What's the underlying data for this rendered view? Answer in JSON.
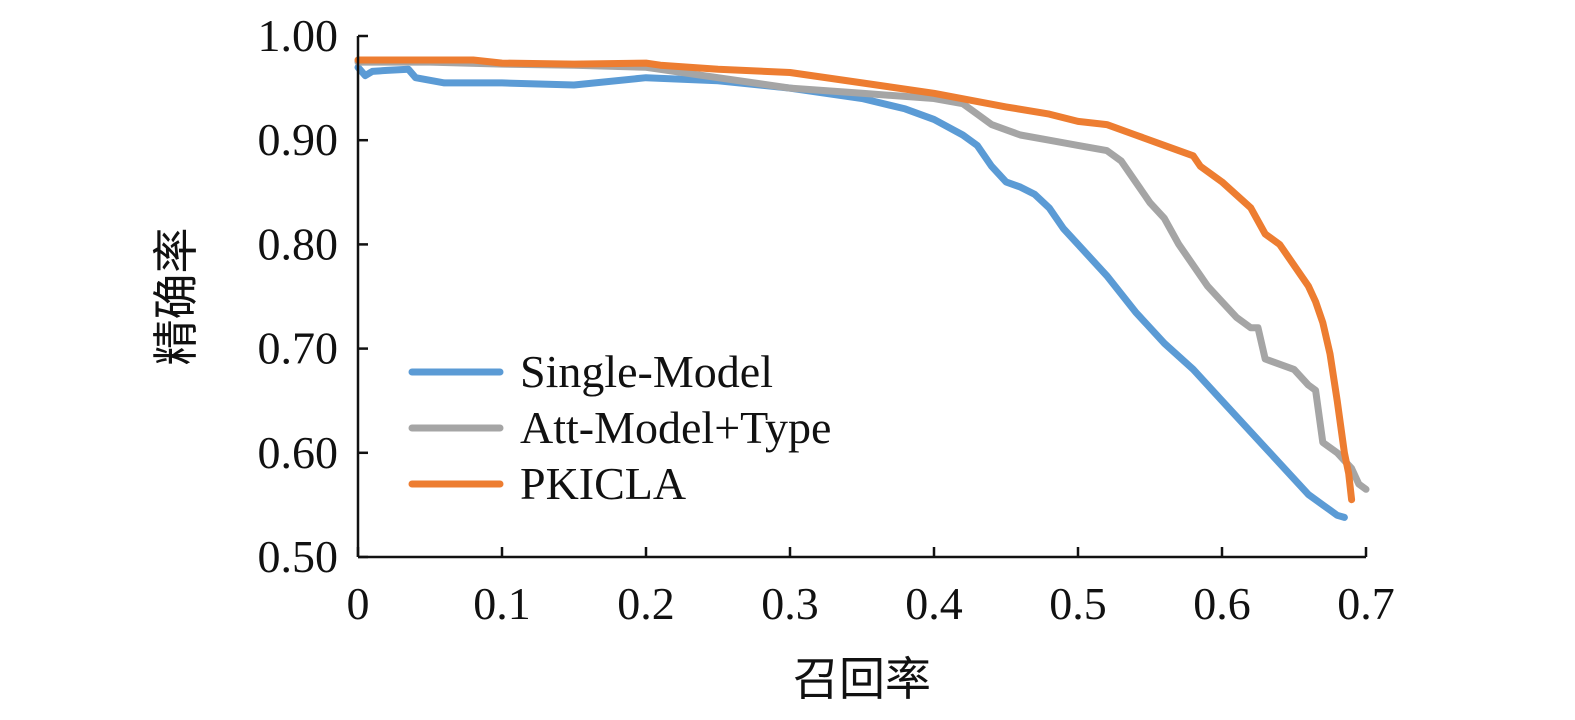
{
  "chart_data": {
    "type": "line",
    "title": "",
    "xlabel": "召回率",
    "ylabel": "精确率",
    "xlim": [
      0,
      0.7
    ],
    "ylim": [
      0.5,
      1.0
    ],
    "xticks": [
      0,
      0.1,
      0.2,
      0.3,
      0.4,
      0.5,
      0.6,
      0.7
    ],
    "xtick_labels": [
      "0",
      "0.1",
      "0.2",
      "0.3",
      "0.4",
      "0.5",
      "0.6",
      "0.7"
    ],
    "yticks": [
      0.5,
      0.6,
      0.7,
      0.8,
      0.9,
      1.0
    ],
    "ytick_labels": [
      "0.50",
      "0.60",
      "0.70",
      "0.80",
      "0.90",
      "1.00"
    ],
    "grid": false,
    "legend_position": "center-left",
    "series": [
      {
        "name": "Single-Model",
        "color": "#5B9BD5",
        "x": [
          0,
          0.005,
          0.01,
          0.02,
          0.035,
          0.04,
          0.06,
          0.1,
          0.15,
          0.2,
          0.25,
          0.3,
          0.35,
          0.38,
          0.4,
          0.42,
          0.43,
          0.44,
          0.45,
          0.46,
          0.47,
          0.48,
          0.49,
          0.5,
          0.52,
          0.54,
          0.56,
          0.58,
          0.6,
          0.62,
          0.63,
          0.64,
          0.65,
          0.66,
          0.67,
          0.675,
          0.68,
          0.685
        ],
        "y": [
          0.97,
          0.962,
          0.966,
          0.967,
          0.968,
          0.96,
          0.955,
          0.955,
          0.953,
          0.96,
          0.957,
          0.95,
          0.94,
          0.93,
          0.92,
          0.905,
          0.895,
          0.875,
          0.86,
          0.855,
          0.848,
          0.835,
          0.815,
          0.8,
          0.77,
          0.735,
          0.705,
          0.68,
          0.65,
          0.62,
          0.605,
          0.59,
          0.575,
          0.56,
          0.55,
          0.545,
          0.54,
          0.538
        ]
      },
      {
        "name": "Att-Model+Type",
        "color": "#A5A5A5",
        "x": [
          0,
          0.05,
          0.1,
          0.15,
          0.2,
          0.25,
          0.3,
          0.35,
          0.4,
          0.42,
          0.43,
          0.44,
          0.46,
          0.48,
          0.5,
          0.52,
          0.53,
          0.54,
          0.55,
          0.56,
          0.57,
          0.58,
          0.59,
          0.6,
          0.61,
          0.62,
          0.625,
          0.63,
          0.65,
          0.66,
          0.665,
          0.67,
          0.68,
          0.69,
          0.695,
          0.7
        ],
        "y": [
          0.975,
          0.975,
          0.973,
          0.972,
          0.97,
          0.96,
          0.95,
          0.945,
          0.94,
          0.935,
          0.925,
          0.915,
          0.905,
          0.9,
          0.895,
          0.89,
          0.88,
          0.86,
          0.84,
          0.825,
          0.8,
          0.78,
          0.76,
          0.745,
          0.73,
          0.72,
          0.72,
          0.69,
          0.68,
          0.665,
          0.66,
          0.61,
          0.6,
          0.585,
          0.57,
          0.565
        ]
      },
      {
        "name": "PKICLA",
        "color": "#ED7D31",
        "x": [
          0,
          0.05,
          0.08,
          0.1,
          0.15,
          0.2,
          0.21,
          0.25,
          0.3,
          0.35,
          0.4,
          0.45,
          0.48,
          0.5,
          0.52,
          0.54,
          0.56,
          0.58,
          0.585,
          0.6,
          0.62,
          0.63,
          0.64,
          0.65,
          0.66,
          0.665,
          0.67,
          0.675,
          0.68,
          0.685,
          0.688,
          0.69
        ],
        "y": [
          0.977,
          0.977,
          0.977,
          0.974,
          0.973,
          0.974,
          0.972,
          0.968,
          0.965,
          0.955,
          0.945,
          0.932,
          0.925,
          0.918,
          0.915,
          0.905,
          0.895,
          0.885,
          0.875,
          0.86,
          0.835,
          0.81,
          0.8,
          0.78,
          0.76,
          0.745,
          0.725,
          0.695,
          0.65,
          0.6,
          0.58,
          0.555
        ]
      }
    ]
  }
}
